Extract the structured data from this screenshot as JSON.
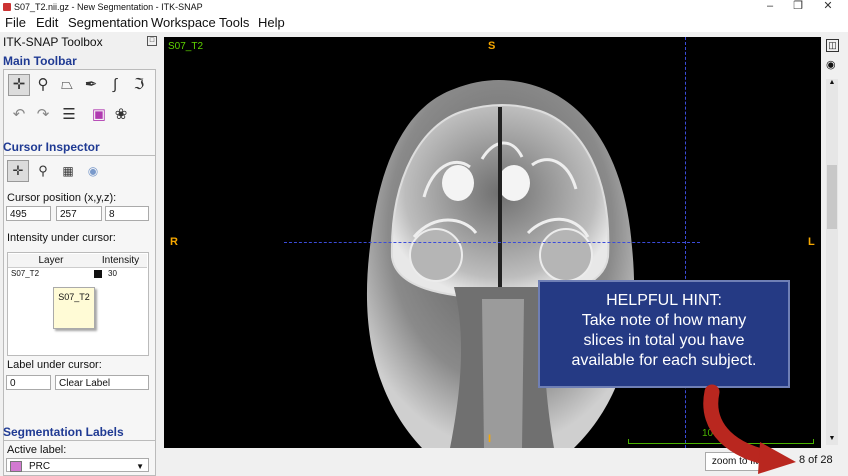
{
  "window": {
    "title": "S07_T2.nii.gz - New Segmentation - ITK-SNAP",
    "min": "–",
    "max": "❐",
    "close": "✕"
  },
  "menu": [
    "File",
    "Edit",
    "Segmentation",
    "Workspace",
    "Tools",
    "Help"
  ],
  "toolbox": {
    "title": "ITK-SNAP Toolbox",
    "main_toolbar_label": "Main Toolbar",
    "cursor_inspector_label": "Cursor Inspector",
    "cursor_position_label": "Cursor position (x,y,z):",
    "cursor_position": [
      "495",
      "257",
      "8"
    ],
    "intensity_label": "Intensity under cursor:",
    "table_headers": [
      "Layer",
      "Intensity"
    ],
    "table_rows": [
      {
        "layer": "S07_T2",
        "intensity": "30"
      }
    ],
    "tooltip": "S07_T2",
    "label_under_cursor": "Label under cursor:",
    "label_value": "0",
    "label_name": "Clear Label",
    "segmentation_labels": "Segmentation Labels",
    "active_label_caption": "Active label:",
    "active_label": "PRC",
    "active_label_color": "#d27ad1"
  },
  "viewer": {
    "image_name": "S07_T2",
    "orient_top": "S",
    "orient_bottom": "I",
    "orient_left": "R",
    "orient_right": "L",
    "scale_label": "10",
    "hint_title": "HELPFUL HINT:",
    "hint_lines": [
      "Take note of how many",
      "slices in total you have",
      "available for each subject."
    ]
  },
  "status": {
    "zoom_to_fit": "zoom to fit",
    "slice_counter": "8 of 28"
  },
  "accent": "#1f3a93"
}
